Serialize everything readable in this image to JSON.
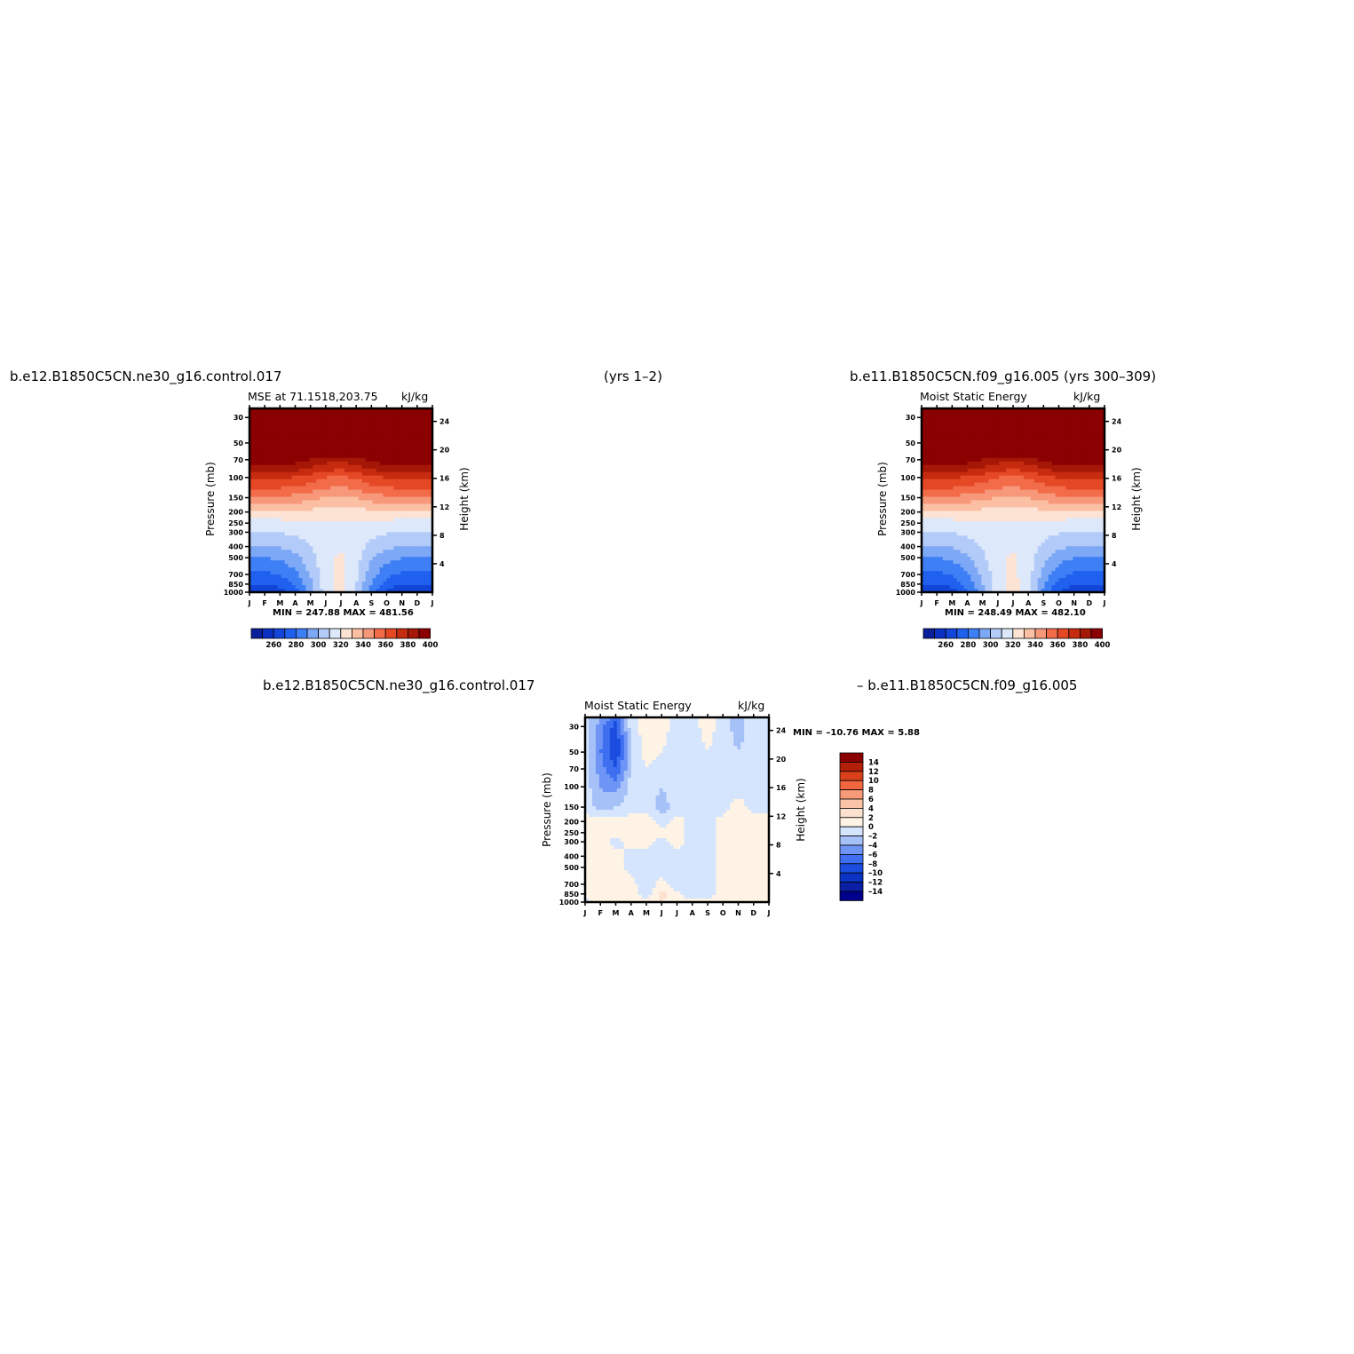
{
  "header": {
    "top_left": "b.e12.B1850C5CN.ne30_g16.control.017",
    "top_center": "(yrs 1–2)",
    "top_right": "b.e11.B1850C5CN.f09_g16.005 (yrs 300–309)",
    "bottom_left": "b.e12.B1850C5CN.ne30_g16.control.017",
    "bottom_right": "– b.e11.B1850C5CN.f09_g16.005"
  },
  "chart_data": [
    {
      "id": "mse-case",
      "type": "heatmap",
      "title": "MSE at 71.1518,203.75",
      "units": "kJ/kg",
      "xlabel": "",
      "ylabel": "Pressure (mb)",
      "y2label": "Height (km)",
      "months": [
        "J",
        "F",
        "M",
        "A",
        "M",
        "J",
        "J",
        "A",
        "S",
        "O",
        "N",
        "D",
        "J"
      ],
      "pressure_ticks": [
        30,
        50,
        70,
        100,
        150,
        200,
        250,
        300,
        400,
        500,
        700,
        850,
        1000
      ],
      "height_ticks": [
        4,
        8,
        12,
        16,
        20,
        24
      ],
      "ylim": [
        1000,
        25
      ],
      "stats": "MIN = 247.88 MAX = 481.56",
      "min": 247.88,
      "max": 481.56,
      "colorbar_labels": [
        "260",
        "280",
        "300",
        "320",
        "340",
        "360",
        "380",
        "400"
      ],
      "contour_levels": [
        250,
        260,
        270,
        280,
        290,
        300,
        310,
        320,
        330,
        340,
        350,
        360,
        370,
        380,
        390,
        400
      ],
      "profile_pressure": [
        1000,
        850,
        700,
        500,
        400,
        300,
        250,
        200,
        150,
        100,
        70,
        50,
        30,
        25
      ],
      "profile_winter": [
        262,
        270,
        278,
        290,
        300,
        310,
        316,
        328,
        348,
        372,
        398,
        440,
        470,
        481
      ],
      "profile_summer": [
        325,
        324,
        323,
        322,
        319,
        318,
        319,
        325,
        338,
        358,
        382,
        430,
        465,
        481
      ],
      "summer_weight": [
        0.0,
        0.0,
        0.05,
        0.2,
        0.5,
        0.85,
        1.0,
        0.75,
        0.35,
        0.1,
        0.0,
        0.0,
        0.0
      ]
    },
    {
      "id": "mse-control",
      "type": "heatmap",
      "title": "Moist Static Energy",
      "units": "kJ/kg",
      "xlabel": "",
      "ylabel": "Pressure (mb)",
      "y2label": "Height (km)",
      "months": [
        "J",
        "F",
        "M",
        "A",
        "M",
        "J",
        "J",
        "A",
        "S",
        "O",
        "N",
        "D",
        "J"
      ],
      "pressure_ticks": [
        30,
        50,
        70,
        100,
        150,
        200,
        250,
        300,
        400,
        500,
        700,
        850,
        1000
      ],
      "height_ticks": [
        4,
        8,
        12,
        16,
        20,
        24
      ],
      "ylim": [
        1000,
        25
      ],
      "stats": "MIN = 248.49 MAX = 482.10",
      "min": 248.49,
      "max": 482.1,
      "colorbar_labels": [
        "260",
        "280",
        "300",
        "320",
        "340",
        "360",
        "380",
        "400"
      ],
      "contour_levels": [
        250,
        260,
        270,
        280,
        290,
        300,
        310,
        320,
        330,
        340,
        350,
        360,
        370,
        380,
        390,
        400
      ],
      "profile_pressure": [
        1000,
        850,
        700,
        500,
        400,
        300,
        250,
        200,
        150,
        100,
        70,
        50,
        30,
        25
      ],
      "profile_winter": [
        262,
        270,
        278,
        290,
        300,
        310,
        316,
        328,
        348,
        372,
        398,
        440,
        470,
        482
      ],
      "profile_summer": [
        325,
        324,
        323,
        322,
        319,
        318,
        319,
        325,
        338,
        358,
        382,
        430,
        465,
        482
      ],
      "summer_weight": [
        0.0,
        0.0,
        0.05,
        0.25,
        0.55,
        0.85,
        1.0,
        0.8,
        0.4,
        0.12,
        0.0,
        0.0,
        0.0
      ]
    },
    {
      "id": "mse-diff",
      "type": "heatmap",
      "title": "Moist Static Energy",
      "units": "kJ/kg",
      "xlabel": "",
      "ylabel": "Pressure (mb)",
      "y2label": "Height (km)",
      "months": [
        "J",
        "F",
        "M",
        "A",
        "M",
        "J",
        "J",
        "A",
        "S",
        "O",
        "N",
        "D",
        "J"
      ],
      "pressure_ticks": [
        30,
        50,
        70,
        100,
        150,
        200,
        250,
        300,
        400,
        500,
        700,
        850,
        1000
      ],
      "height_ticks": [
        4,
        8,
        12,
        16,
        20,
        24
      ],
      "ylim": [
        1000,
        25
      ],
      "stats": "MIN = –10.76 MAX =    5.88",
      "min": -10.76,
      "max": 5.88,
      "colorbar_labels": [
        "14",
        "12",
        "10",
        "8",
        "6",
        "4",
        "2",
        "0",
        "–2",
        "–4",
        "–6",
        "–8",
        "–10",
        "–12",
        "–14"
      ],
      "contour_levels": [
        -14,
        -12,
        -10,
        -8,
        -6,
        -4,
        -2,
        0,
        2,
        4,
        6,
        8,
        10,
        12,
        14
      ],
      "grid_pressure": [
        25,
        30,
        50,
        70,
        100,
        150,
        200,
        250,
        300,
        400,
        500,
        700,
        850,
        1000
      ],
      "grid_values": [
        [
          -1,
          -4,
          -7,
          -1,
          1,
          1,
          -1,
          -1,
          1,
          -1,
          -3,
          -1,
          -1
        ],
        [
          -1,
          -5,
          -9,
          -1,
          1,
          1,
          -1,
          -1,
          1,
          -1,
          -3,
          -1,
          -1
        ],
        [
          -1,
          -6,
          -10,
          -2,
          1,
          0,
          -1,
          -1,
          0,
          -1,
          -2,
          -1,
          -1
        ],
        [
          -1,
          -5,
          -8,
          -2,
          0,
          -1,
          -1,
          -1,
          -1,
          -1,
          -1,
          -1,
          -1
        ],
        [
          -1,
          -4,
          -5,
          -1,
          -1,
          -2,
          -1,
          -1,
          -1,
          -1,
          -1,
          -1,
          -1
        ],
        [
          -1,
          -3,
          -2,
          -1,
          -1,
          -3,
          -1,
          -1,
          -1,
          -1,
          1,
          -1,
          -1
        ],
        [
          1,
          1,
          1,
          1,
          1,
          -1,
          1,
          -1,
          -1,
          1,
          2,
          1,
          1
        ],
        [
          1,
          1,
          1,
          1,
          1,
          1,
          1,
          -1,
          -1,
          1,
          1,
          1,
          1
        ],
        [
          1,
          1,
          -1,
          1,
          1,
          -1,
          1,
          -1,
          -1,
          1,
          1,
          1,
          1
        ],
        [
          1,
          1,
          1,
          -1,
          -1,
          -1,
          -1,
          -1,
          -1,
          1,
          1,
          1,
          1
        ],
        [
          1,
          2,
          1,
          -1,
          -2,
          -1,
          -1,
          -1,
          -1,
          1,
          1,
          1,
          1
        ],
        [
          1,
          2,
          1,
          1,
          -2,
          1,
          -2,
          -1,
          -1,
          1,
          1,
          1,
          1
        ],
        [
          1,
          2,
          2,
          1,
          -1,
          3,
          1,
          -2,
          -1,
          1,
          1,
          1,
          1
        ],
        [
          -1,
          1,
          1,
          1,
          1,
          2,
          1,
          1,
          1,
          1,
          1,
          1,
          1
        ]
      ]
    }
  ],
  "colors": {
    "mse_palette": [
      "#0a1f9c",
      "#0b2fc2",
      "#1245d8",
      "#2060ef",
      "#3f7ff5",
      "#7da8f6",
      "#b2cbf9",
      "#dde8fb",
      "#fde3d3",
      "#fbc0a4",
      "#f7987a",
      "#f26c4a",
      "#e54825",
      "#c62b10",
      "#a51706",
      "#8b0000"
    ],
    "diff_palette": [
      "#00008b",
      "#0a1fa3",
      "#0b33c4",
      "#1b4ee0",
      "#3d6ff0",
      "#6e95f5",
      "#a6c0f8",
      "#d4e5fd",
      "#fff3e6",
      "#fde1cf",
      "#fbc3a8",
      "#f79a79",
      "#f0673f",
      "#d9411a",
      "#b2200a",
      "#8b0000"
    ]
  }
}
